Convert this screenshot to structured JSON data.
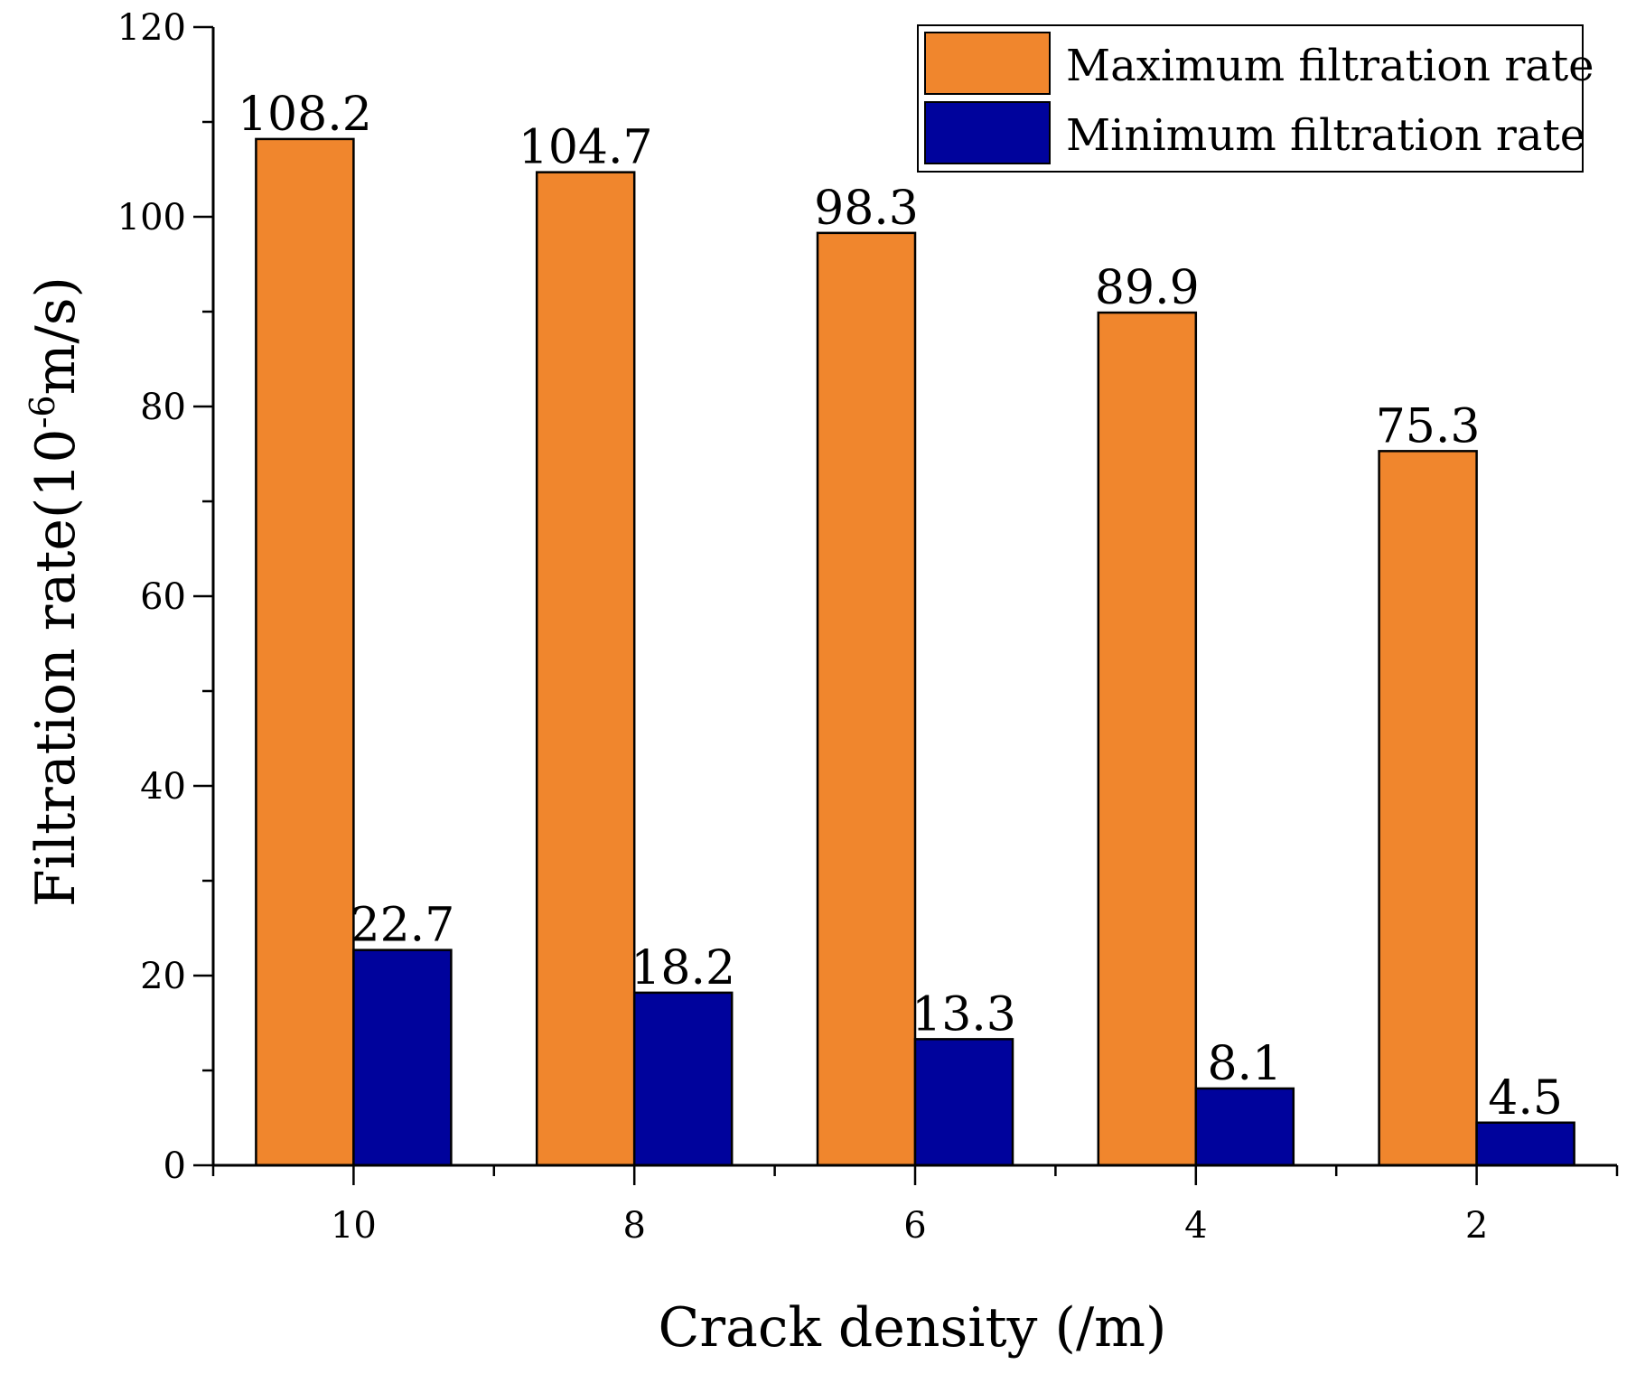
{
  "chart_data": {
    "type": "bar",
    "title": "",
    "xlabel": "Crack density (/m)",
    "ylabel": {
      "main": "Filtration rate(10",
      "superscript": "-6",
      "unit": "m/s)"
    },
    "categories": [
      "10",
      "8",
      "6",
      "4",
      "2"
    ],
    "series": [
      {
        "name": "Maximum filtration rate",
        "color": "#f0862d",
        "values": [
          108.2,
          104.7,
          98.3,
          89.9,
          75.3
        ],
        "labels": [
          "108.2",
          "104.7",
          "98.3",
          "89.9",
          "75.3"
        ]
      },
      {
        "name": "Minimum filtration rate",
        "color": "#00039c",
        "values": [
          22.7,
          18.2,
          13.3,
          8.1,
          4.5
        ],
        "labels": [
          "22.7",
          "18.2",
          "13.3",
          "8.1",
          "4.5"
        ]
      }
    ],
    "ylim": [
      0,
      120
    ],
    "yticks": [
      "0",
      "20",
      "40",
      "60",
      "80",
      "100",
      "120"
    ],
    "legend_position": "top-right",
    "grid": false
  }
}
